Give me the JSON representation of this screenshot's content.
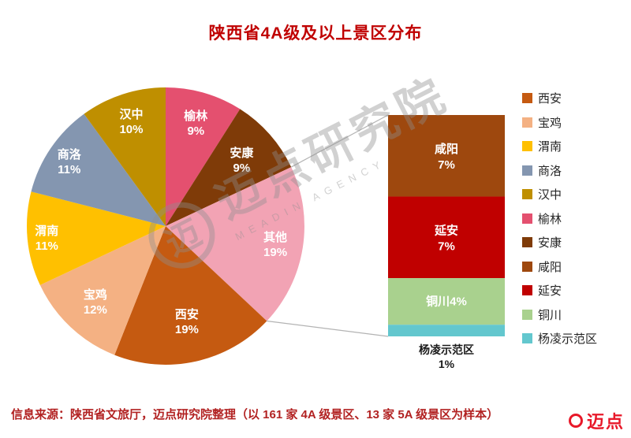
{
  "title": "陕西省4A级及以上景区分布",
  "source": "信息来源：陕西省文旅厅，迈点研究院整理（以 161 家 4A 级景区、13 家 5A 级景区为样本）",
  "watermark": {
    "cn": "迈点研究院",
    "en": "MEADIN AGENCY",
    "logo_glyph": "迈"
  },
  "brand": {
    "name": "迈点"
  },
  "colors": {
    "title": "#C00000",
    "source": "#B22222",
    "watermark": "#8F8F8F",
    "brand": "#E60012",
    "callout_line": "#B3B3B3"
  },
  "chart_data": {
    "type": "pie",
    "title": "陕西省4A级及以上景区分布",
    "unit": "%",
    "direction": "clockwise",
    "start_angle_deg": 0,
    "legend_position": "right",
    "slices": [
      {
        "label": "榆林",
        "value": 9,
        "color": "#E4506F"
      },
      {
        "label": "安康",
        "value": 9,
        "color": "#7F3B08"
      },
      {
        "label": "其他",
        "value": 19,
        "color": "#F2A3B4",
        "breakout": true
      },
      {
        "label": "西安",
        "value": 19,
        "color": "#C55A11"
      },
      {
        "label": "宝鸡",
        "value": 12,
        "color": "#F4B183"
      },
      {
        "label": "渭南",
        "value": 11,
        "color": "#FFC000"
      },
      {
        "label": "商洛",
        "value": 11,
        "color": "#8496B0"
      },
      {
        "label": "汉中",
        "value": 10,
        "color": "#BF8F00"
      }
    ],
    "breakout": {
      "parent": "其他",
      "type": "stacked-bar",
      "segments": [
        {
          "label": "咸阳",
          "value": 7,
          "color": "#9E480E"
        },
        {
          "label": "延安",
          "value": 7,
          "color": "#C00000"
        },
        {
          "label": "铜川",
          "value": 4,
          "color": "#A9D18E",
          "inline_label": true
        },
        {
          "label": "杨凌示范区",
          "value": 1,
          "color": "#63C7CE",
          "outside_label": true
        }
      ]
    },
    "legend": [
      "西安",
      "宝鸡",
      "渭南",
      "商洛",
      "汉中",
      "榆林",
      "安康",
      "咸阳",
      "延安",
      "铜川",
      "杨凌示范区"
    ]
  }
}
